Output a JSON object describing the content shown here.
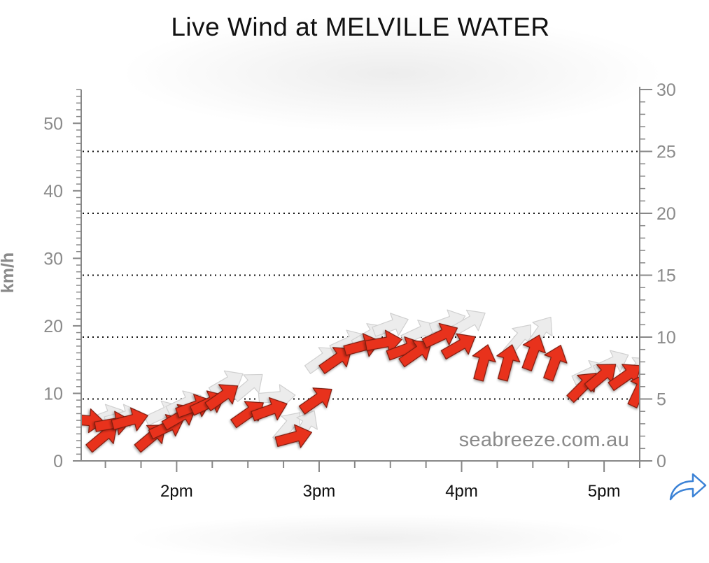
{
  "title": "Live Wind at MELVILLE WATER",
  "watermark": "seabreeze.com.au",
  "share_icon": "share-arrow-icon",
  "colors": {
    "arrow_fill": "#e8321f",
    "arrow_stroke": "#7a1a10",
    "gust_fill": "#ececec",
    "gust_stroke": "#d0d0d0",
    "axis": "#888888",
    "tick_label": "#8a8a8a",
    "share_icon": "#3b82d6"
  },
  "chart_data": {
    "type": "scatter",
    "title": "Live Wind at MELVILLE WATER",
    "ylabel": "km/h",
    "ylabel_right": "",
    "xlabel": "",
    "ylim": [
      0,
      55
    ],
    "ylim_right": [
      0,
      30
    ],
    "x_range_hours": [
      13.33,
      17.25
    ],
    "y_ticks": [
      "0",
      "10",
      "20",
      "30",
      "40",
      "50"
    ],
    "y_right_ticks": [
      "0",
      "5",
      "10",
      "15",
      "20",
      "25",
      "30"
    ],
    "x_ticks": [
      {
        "label": "2pm",
        "value": 14
      },
      {
        "label": "3pm",
        "value": 15
      },
      {
        "label": "4pm",
        "value": 16
      },
      {
        "label": "5pm",
        "value": 17
      }
    ],
    "gridlines_right_units": [
      5,
      10,
      15,
      20,
      25
    ],
    "grid_style": "dotted",
    "series": [
      {
        "name": "",
        "style": "red-arrows",
        "points": [
          {
            "t": 13.36,
            "speed": 6,
            "dir": 95
          },
          {
            "t": 13.48,
            "speed": 3.5,
            "dir": 50
          },
          {
            "t": 13.55,
            "speed": 5.5,
            "dir": 80
          },
          {
            "t": 13.67,
            "speed": 6,
            "dir": 75
          },
          {
            "t": 13.82,
            "speed": 3.5,
            "dir": 50
          },
          {
            "t": 13.93,
            "speed": 5,
            "dir": 65
          },
          {
            "t": 14.02,
            "speed": 6.5,
            "dir": 60
          },
          {
            "t": 14.12,
            "speed": 8,
            "dir": 70
          },
          {
            "t": 14.22,
            "speed": 8.5,
            "dir": 65
          },
          {
            "t": 14.32,
            "speed": 9.5,
            "dir": 55
          },
          {
            "t": 14.5,
            "speed": 7,
            "dir": 55
          },
          {
            "t": 14.65,
            "speed": 7.5,
            "dir": 70
          },
          {
            "t": 14.82,
            "speed": 3.5,
            "dir": 75
          },
          {
            "t": 14.98,
            "speed": 9,
            "dir": 55
          },
          {
            "t": 15.12,
            "speed": 15,
            "dir": 55
          },
          {
            "t": 15.3,
            "speed": 17,
            "dir": 75
          },
          {
            "t": 15.45,
            "speed": 17.5,
            "dir": 80
          },
          {
            "t": 15.6,
            "speed": 16.5,
            "dir": 70
          },
          {
            "t": 15.68,
            "speed": 16,
            "dir": 55
          },
          {
            "t": 15.85,
            "speed": 18.5,
            "dir": 65
          },
          {
            "t": 15.98,
            "speed": 17,
            "dir": 60
          },
          {
            "t": 16.15,
            "speed": 14.5,
            "dir": 15
          },
          {
            "t": 16.32,
            "speed": 14.5,
            "dir": 15
          },
          {
            "t": 16.5,
            "speed": 16,
            "dir": 20
          },
          {
            "t": 16.65,
            "speed": 14.5,
            "dir": 20
          },
          {
            "t": 16.85,
            "speed": 11,
            "dir": 45
          },
          {
            "t": 16.98,
            "speed": 12.5,
            "dir": 50
          },
          {
            "t": 17.15,
            "speed": 12.5,
            "dir": 55
          },
          {
            "t": 17.25,
            "speed": 10.5,
            "dir": 25
          }
        ]
      },
      {
        "name": "",
        "style": "gust-arrows",
        "points": [
          {
            "t": 13.5,
            "speed": 6.5,
            "dir": 70
          },
          {
            "t": 13.62,
            "speed": 6.5,
            "dir": 75
          },
          {
            "t": 13.9,
            "speed": 7,
            "dir": 65
          },
          {
            "t": 14.05,
            "speed": 8.5,
            "dir": 65
          },
          {
            "t": 14.35,
            "speed": 11.5,
            "dir": 60
          },
          {
            "t": 14.5,
            "speed": 11,
            "dir": 50
          },
          {
            "t": 14.7,
            "speed": 9.5,
            "dir": 85
          },
          {
            "t": 14.78,
            "speed": 5,
            "dir": 40
          },
          {
            "t": 14.9,
            "speed": 5,
            "dir": 30
          },
          {
            "t": 15.02,
            "speed": 15,
            "dir": 55
          },
          {
            "t": 15.2,
            "speed": 17.5,
            "dir": 65
          },
          {
            "t": 15.35,
            "speed": 18.5,
            "dir": 60
          },
          {
            "t": 15.5,
            "speed": 20,
            "dir": 70
          },
          {
            "t": 15.7,
            "speed": 19,
            "dir": 65
          },
          {
            "t": 15.9,
            "speed": 20.5,
            "dir": 70
          },
          {
            "t": 16.05,
            "speed": 20.5,
            "dir": 60
          },
          {
            "t": 16.4,
            "speed": 18,
            "dir": 40
          },
          {
            "t": 16.55,
            "speed": 19,
            "dir": 35
          },
          {
            "t": 16.9,
            "speed": 13,
            "dir": 65
          },
          {
            "t": 17.05,
            "speed": 14.5,
            "dir": 65
          },
          {
            "t": 17.22,
            "speed": 13.5,
            "dir": 55
          }
        ]
      }
    ]
  }
}
